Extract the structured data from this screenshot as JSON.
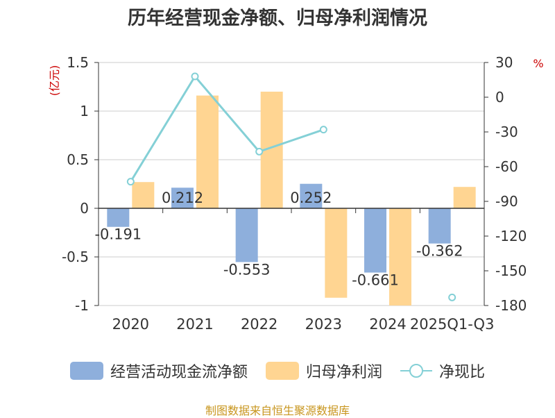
{
  "title": "历年经营现金净额、归母净利润情况",
  "source": "制图数据来自恒生聚源数据库",
  "colors": {
    "cash": "#8eafdc",
    "profit": "#ffd592",
    "ratio": "#84d0d6",
    "unit": "#cc0000",
    "axis": "#333333",
    "grid": "#cccccc",
    "text": "#333333"
  },
  "chart_data": {
    "type": "bar",
    "categories": [
      "2020",
      "2021",
      "2022",
      "2023",
      "2024",
      "2025Q1-Q3"
    ],
    "left_axis": {
      "unit": "(亿元)",
      "ylim": [
        -1,
        1.5
      ],
      "ticks": [
        "1.5",
        "1",
        "0.5",
        "0",
        "-0.5",
        "-1"
      ]
    },
    "right_axis": {
      "unit": "%",
      "ylim": [
        -180,
        30
      ],
      "ticks": [
        "30",
        "0",
        "-30",
        "-60",
        "-90",
        "-120",
        "-150",
        "-180"
      ]
    },
    "series": [
      {
        "name": "经营活动现金流净额",
        "kind": "bar",
        "axis": "left",
        "values": [
          -0.191,
          0.212,
          -0.553,
          0.252,
          -0.661,
          -0.362
        ],
        "labels": [
          "-0.191",
          "0.212",
          "-0.553",
          "0.252",
          "-0.661",
          "-0.362"
        ]
      },
      {
        "name": "归母净利润",
        "kind": "bar",
        "axis": "left",
        "values": [
          0.27,
          1.16,
          1.2,
          -0.92,
          -1.0,
          0.22
        ]
      },
      {
        "name": "净现比",
        "kind": "line",
        "axis": "right",
        "values": [
          -73,
          18,
          -47,
          -28,
          null,
          -173
        ]
      }
    ]
  }
}
